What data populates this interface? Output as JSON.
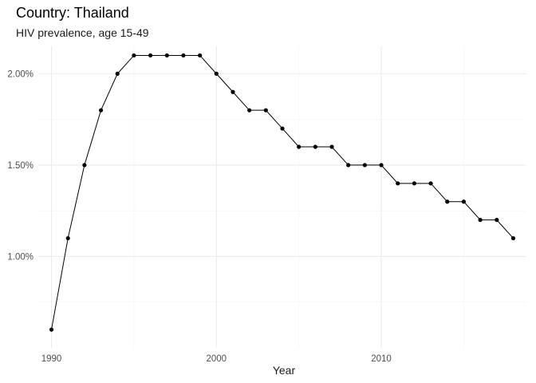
{
  "chart_data": {
    "type": "line",
    "title": "Country: Thailand",
    "subtitle": "HIV prevalence, age 15-49",
    "xlabel": "Year",
    "ylabel": "",
    "x_ticks": [
      1990,
      2000,
      2010
    ],
    "y_ticks": [
      0.01,
      0.015,
      0.02
    ],
    "y_tick_labels": [
      "1.00%",
      "1.50%",
      "2.00%"
    ],
    "xlim": [
      1989.2,
      2018.8
    ],
    "ylim": [
      0.005,
      0.0215
    ],
    "grid": true,
    "line_color": "#000000",
    "point_color": "#000000",
    "x": [
      1990,
      1991,
      1992,
      1993,
      1994,
      1995,
      1996,
      1997,
      1998,
      1999,
      2000,
      2001,
      2002,
      2003,
      2004,
      2005,
      2006,
      2007,
      2008,
      2009,
      2010,
      2011,
      2012,
      2013,
      2014,
      2015,
      2016,
      2017,
      2018
    ],
    "y": [
      0.006,
      0.011,
      0.015,
      0.018,
      0.02,
      0.021,
      0.021,
      0.021,
      0.021,
      0.021,
      0.02,
      0.019,
      0.018,
      0.018,
      0.017,
      0.016,
      0.016,
      0.016,
      0.015,
      0.015,
      0.015,
      0.014,
      0.014,
      0.014,
      0.013,
      0.013,
      0.012,
      0.012,
      0.011
    ]
  }
}
